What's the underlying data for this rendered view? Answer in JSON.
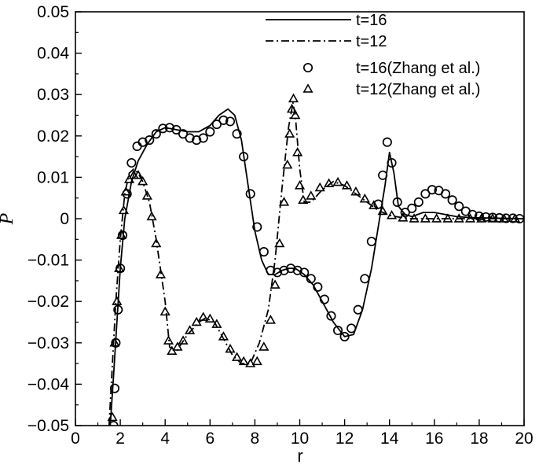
{
  "chart_data": {
    "type": "line",
    "title": "",
    "xlabel": "r",
    "ylabel": "P",
    "xlim": [
      0,
      20
    ],
    "ylim": [
      -0.05,
      0.05
    ],
    "xticks": [
      0,
      2,
      4,
      6,
      8,
      10,
      12,
      14,
      16,
      18,
      20
    ],
    "xtick_labels": [
      "0",
      "2",
      "4",
      "6",
      "8",
      "10",
      "12",
      "14",
      "16",
      "18",
      "20"
    ],
    "yticks": [
      -0.05,
      -0.04,
      -0.03,
      -0.02,
      -0.01,
      0,
      0.01,
      0.02,
      0.03,
      0.04,
      0.05
    ],
    "ytick_labels": [
      "−0.05",
      "−0.04",
      "−0.03",
      "−0.02",
      "−0.01",
      "0",
      "0.01",
      "0.02",
      "0.03",
      "0.04",
      "0.05"
    ],
    "grid": false,
    "legend_position": "top-right",
    "series": [
      {
        "name": "t=16",
        "style": "solid",
        "color": "#000000",
        "x": [
          1.55,
          1.7,
          1.85,
          2.0,
          2.2,
          2.5,
          2.8,
          3.2,
          3.6,
          4.0,
          4.5,
          5.0,
          5.5,
          6.0,
          6.4,
          6.8,
          7.1,
          7.4,
          7.7,
          8.0,
          8.3,
          8.6,
          8.9,
          9.2,
          9.5,
          9.8,
          10.2,
          10.6,
          11.0,
          11.5,
          12.0,
          12.4,
          12.8,
          13.2,
          13.5,
          13.8,
          14.0,
          14.2,
          14.4,
          14.7,
          15.0,
          15.5,
          16.0,
          16.5,
          17.0,
          17.5,
          18.0,
          19.0,
          20.0
        ],
        "y": [
          -0.05,
          -0.038,
          -0.025,
          -0.012,
          0.0,
          0.009,
          0.014,
          0.018,
          0.021,
          0.022,
          0.0215,
          0.021,
          0.021,
          0.0225,
          0.025,
          0.0265,
          0.025,
          0.019,
          0.008,
          -0.003,
          -0.01,
          -0.0135,
          -0.0135,
          -0.0125,
          -0.012,
          -0.012,
          -0.0135,
          -0.016,
          -0.02,
          -0.025,
          -0.0285,
          -0.028,
          -0.022,
          -0.012,
          -0.002,
          0.008,
          0.016,
          0.011,
          0.003,
          0.001,
          0.0005,
          0.0015,
          0.0015,
          0.001,
          0.0005,
          0.0003,
          0.0002,
          0.0001,
          0.0
        ],
        "points": []
      },
      {
        "name": "t=12",
        "style": "dashdot",
        "color": "#000000",
        "x": [
          1.5,
          1.65,
          1.8,
          2.0,
          2.2,
          2.4,
          2.6,
          2.8,
          3.0,
          3.3,
          3.6,
          4.0,
          4.2,
          4.5,
          5.0,
          5.5,
          5.8,
          6.2,
          6.6,
          7.0,
          7.4,
          7.8,
          8.2,
          8.6,
          8.9,
          9.2,
          9.5,
          9.7,
          9.8,
          10.0,
          10.2,
          10.5,
          11.0,
          11.5,
          12.0,
          12.5,
          13.0,
          13.5,
          14.0,
          14.5,
          15.0,
          16.0,
          17.0,
          18.0,
          19.0,
          20.0
        ],
        "y": [
          -0.05,
          -0.035,
          -0.02,
          -0.005,
          0.006,
          0.011,
          0.012,
          0.011,
          0.009,
          0.004,
          -0.005,
          -0.02,
          -0.031,
          -0.032,
          -0.028,
          -0.025,
          -0.024,
          -0.025,
          -0.029,
          -0.033,
          -0.035,
          -0.035,
          -0.03,
          -0.022,
          -0.01,
          0.007,
          0.022,
          0.028,
          0.025,
          0.012,
          0.004,
          0.004,
          0.007,
          0.009,
          0.008,
          0.006,
          0.004,
          0.002,
          0.0008,
          0.0003,
          0.0,
          0.0,
          0.0,
          0.0,
          0.0,
          0.0
        ],
        "points": []
      },
      {
        "name": "t=16(Zhang et al.)",
        "style": "circle",
        "color": "#000000",
        "x": [],
        "y": [],
        "points": [
          [
            1.7,
            -0.05
          ],
          [
            1.75,
            -0.041
          ],
          [
            1.8,
            -0.03
          ],
          [
            1.9,
            -0.022
          ],
          [
            2.0,
            -0.012
          ],
          [
            2.1,
            -0.004
          ],
          [
            2.3,
            0.006
          ],
          [
            2.5,
            0.0135
          ],
          [
            2.75,
            0.0175
          ],
          [
            3.0,
            0.0185
          ],
          [
            3.3,
            0.019
          ],
          [
            3.6,
            0.0205
          ],
          [
            3.9,
            0.0218
          ],
          [
            4.2,
            0.022
          ],
          [
            4.5,
            0.0215
          ],
          [
            4.8,
            0.0205
          ],
          [
            5.1,
            0.0195
          ],
          [
            5.4,
            0.019
          ],
          [
            5.7,
            0.0195
          ],
          [
            6.0,
            0.021
          ],
          [
            6.3,
            0.0228
          ],
          [
            6.6,
            0.0238
          ],
          [
            6.9,
            0.0235
          ],
          [
            7.2,
            0.0205
          ],
          [
            7.5,
            0.015
          ],
          [
            7.8,
            0.006
          ],
          [
            8.1,
            -0.002
          ],
          [
            8.4,
            -0.008
          ],
          [
            8.7,
            -0.0125
          ],
          [
            9.0,
            -0.013
          ],
          [
            9.3,
            -0.0125
          ],
          [
            9.6,
            -0.012
          ],
          [
            9.9,
            -0.0125
          ],
          [
            10.2,
            -0.013
          ],
          [
            10.5,
            -0.0145
          ],
          [
            10.8,
            -0.0165
          ],
          [
            11.1,
            -0.0195
          ],
          [
            11.4,
            -0.0235
          ],
          [
            11.7,
            -0.027
          ],
          [
            12.0,
            -0.0285
          ],
          [
            12.3,
            -0.0265
          ],
          [
            12.6,
            -0.022
          ],
          [
            12.9,
            -0.0145
          ],
          [
            13.2,
            -0.0055
          ],
          [
            13.5,
            0.0035
          ],
          [
            13.7,
            0.0105
          ],
          [
            13.9,
            0.0185
          ],
          [
            14.1,
            0.0135
          ],
          [
            14.35,
            0.004
          ],
          [
            14.7,
            0.0015
          ],
          [
            15.0,
            0.0025
          ],
          [
            15.3,
            0.004
          ],
          [
            15.6,
            0.006
          ],
          [
            15.9,
            0.007
          ],
          [
            16.2,
            0.0068
          ],
          [
            16.5,
            0.006
          ],
          [
            16.8,
            0.0045
          ],
          [
            17.1,
            0.003
          ],
          [
            17.4,
            0.0018
          ],
          [
            17.7,
            0.001
          ],
          [
            18.0,
            0.0006
          ],
          [
            18.3,
            0.0004
          ],
          [
            18.6,
            0.0003
          ],
          [
            18.9,
            0.0002
          ],
          [
            19.2,
            0.0001
          ],
          [
            19.5,
            0.0001
          ],
          [
            19.8,
            0.0
          ]
        ]
      },
      {
        "name": "t=12(Zhang et al.)",
        "style": "triangle",
        "color": "#000000",
        "x": [],
        "y": [],
        "points": [
          [
            1.65,
            -0.048
          ],
          [
            1.75,
            -0.03
          ],
          [
            1.85,
            -0.02
          ],
          [
            1.95,
            -0.012
          ],
          [
            2.05,
            -0.004
          ],
          [
            2.15,
            0.002
          ],
          [
            2.25,
            0.0065
          ],
          [
            2.4,
            0.0095
          ],
          [
            2.6,
            0.0105
          ],
          [
            2.8,
            0.0105
          ],
          [
            3.0,
            0.009
          ],
          [
            3.2,
            0.0055
          ],
          [
            3.4,
            0.0005
          ],
          [
            3.6,
            -0.006
          ],
          [
            3.8,
            -0.0135
          ],
          [
            4.0,
            -0.0225
          ],
          [
            4.15,
            -0.0295
          ],
          [
            4.3,
            -0.032
          ],
          [
            4.55,
            -0.031
          ],
          [
            4.8,
            -0.0295
          ],
          [
            5.1,
            -0.027
          ],
          [
            5.4,
            -0.025
          ],
          [
            5.7,
            -0.0238
          ],
          [
            6.0,
            -0.0242
          ],
          [
            6.3,
            -0.0255
          ],
          [
            6.6,
            -0.0285
          ],
          [
            6.9,
            -0.0315
          ],
          [
            7.2,
            -0.0335
          ],
          [
            7.5,
            -0.0345
          ],
          [
            7.8,
            -0.035
          ],
          [
            8.1,
            -0.0345
          ],
          [
            8.4,
            -0.031
          ],
          [
            8.7,
            -0.0245
          ],
          [
            8.9,
            -0.016
          ],
          [
            9.1,
            -0.006
          ],
          [
            9.3,
            0.004
          ],
          [
            9.45,
            0.013
          ],
          [
            9.55,
            0.0205
          ],
          [
            9.65,
            0.0265
          ],
          [
            9.72,
            0.029
          ],
          [
            9.8,
            0.025
          ],
          [
            9.9,
            0.016
          ],
          [
            10.0,
            0.008
          ],
          [
            10.15,
            0.0045
          ],
          [
            10.5,
            0.0055
          ],
          [
            10.9,
            0.0075
          ],
          [
            11.3,
            0.0085
          ],
          [
            11.7,
            0.0088
          ],
          [
            12.1,
            0.008
          ],
          [
            12.5,
            0.0065
          ],
          [
            12.9,
            0.0048
          ],
          [
            13.3,
            0.0032
          ],
          [
            13.7,
            0.0018
          ],
          [
            14.1,
            0.0008
          ],
          [
            14.6,
            0.0002
          ],
          [
            15.1,
            0.0
          ],
          [
            15.6,
            0.0
          ],
          [
            16.1,
            0.0
          ],
          [
            16.6,
            0.0
          ],
          [
            17.1,
            0.0
          ],
          [
            17.6,
            0.0
          ],
          [
            18.1,
            0.0
          ],
          [
            18.6,
            0.0
          ],
          [
            19.1,
            0.0
          ],
          [
            19.6,
            0.0
          ]
        ]
      }
    ]
  }
}
